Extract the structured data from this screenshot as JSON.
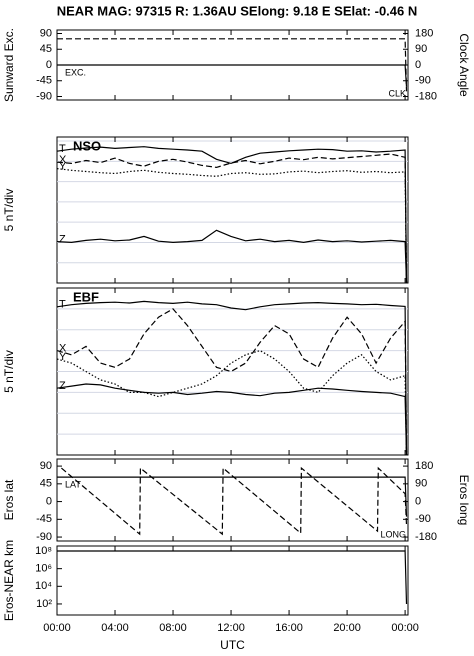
{
  "header": {
    "title": "NEAR MAG: 97315  R: 1.36AU  SElong:   9.18 E  SElat:  -0.46 N"
  },
  "chart_data": [
    {
      "type": "line",
      "ylabel": "Sunward Exc.",
      "y2label": "Clock Angle",
      "x": [
        0,
        24,
        24.1
      ],
      "xlim": [
        0,
        24.2
      ],
      "ylim": [
        -100,
        100
      ],
      "yticks": [
        -90,
        -45,
        0,
        45,
        90
      ],
      "y2lim": [
        -200,
        200
      ],
      "y2ticks": [
        -180,
        -90,
        0,
        90,
        180
      ],
      "series": [
        {
          "name": "EXC.",
          "color": "#000000",
          "dash": "solid",
          "values": [
            0,
            0,
            -62
          ]
        },
        {
          "name": "CLK",
          "color": "#000000",
          "dash": "dashed",
          "axis": "y2",
          "values": [
            150,
            150,
            -150
          ]
        }
      ]
    },
    {
      "type": "line",
      "title": "NSO",
      "ylabel": "5 nT/div",
      "x": [
        0,
        1,
        2,
        3,
        4,
        5,
        6,
        7,
        8,
        9,
        10,
        11,
        12,
        13,
        14,
        15,
        16,
        17,
        18,
        19,
        20,
        21,
        22,
        23,
        24,
        24.1
      ],
      "xlim": [
        0,
        24.2
      ],
      "ylim": [
        0,
        36
      ],
      "grid_lines": [
        5,
        10,
        15,
        20,
        25,
        30,
        35
      ],
      "series": [
        {
          "name": "T",
          "color": "#000000",
          "dash": "solid",
          "values": [
            32.5,
            33,
            33.3,
            33.5,
            33.2,
            33.4,
            33.6,
            33.2,
            33,
            32.8,
            32.5,
            30.5,
            29.5,
            31,
            32,
            32.3,
            32.6,
            32.8,
            33,
            32.9,
            32.5,
            32.6,
            32.3,
            32.5,
            32.8,
            0
          ]
        },
        {
          "name": "X",
          "color": "#000000",
          "dash": "dashed",
          "values": [
            29.8,
            29.5,
            30.2,
            29.7,
            30.8,
            29.5,
            28.8,
            30,
            30.5,
            29.8,
            29,
            28.5,
            29.6,
            30.2,
            29.4,
            30,
            30.8,
            30.4,
            31,
            30.6,
            30.9,
            31.2,
            31.5,
            31.8,
            31,
            0
          ]
        },
        {
          "name": "Y",
          "color": "#000000",
          "dash": "dotted",
          "values": [
            28.2,
            27.8,
            27.5,
            27.2,
            27,
            27.5,
            27.8,
            27.3,
            27,
            26.8,
            26.5,
            26.3,
            27,
            27.2,
            26.8,
            26.9,
            27.4,
            27.6,
            27.2,
            27.5,
            27.7,
            27.3,
            27.5,
            27.2,
            27.4,
            0
          ]
        },
        {
          "name": "Z",
          "color": "#000000",
          "dash": "solid",
          "values": [
            10.2,
            10,
            10.5,
            10.8,
            10.4,
            10.6,
            11.5,
            10.3,
            10,
            10.2,
            10.5,
            13,
            11.5,
            10.4,
            10.8,
            10.2,
            10.5,
            10,
            10.6,
            10.2,
            10.4,
            10.1,
            10.3,
            10.5,
            10.2,
            0
          ]
        }
      ]
    },
    {
      "type": "line",
      "title": "EBF",
      "ylabel": "5 nT/div",
      "x": [
        0,
        1,
        2,
        3,
        4,
        5,
        6,
        7,
        8,
        9,
        10,
        11,
        12,
        13,
        14,
        15,
        16,
        17,
        18,
        19,
        20,
        21,
        22,
        23,
        24,
        24.1
      ],
      "xlim": [
        0,
        24.2
      ],
      "ylim": [
        0,
        40
      ],
      "grid_lines": [
        5,
        10,
        15,
        20,
        25,
        30,
        35
      ],
      "series": [
        {
          "name": "T",
          "color": "#000000",
          "dash": "solid",
          "values": [
            35.5,
            36,
            36.3,
            36.5,
            36.6,
            36.4,
            36.8,
            36.5,
            36.3,
            36.6,
            36.2,
            36,
            35.2,
            34.8,
            35.5,
            36,
            36.2,
            36.4,
            36.5,
            36.3,
            36.2,
            36,
            36.1,
            35.8,
            35.6,
            0
          ]
        },
        {
          "name": "X",
          "color": "#000000",
          "dash": "dashed",
          "values": [
            25,
            24,
            26,
            22,
            21,
            23,
            29,
            33,
            35,
            31,
            26,
            21,
            20,
            22,
            27,
            31,
            29,
            23,
            21,
            28,
            33,
            29,
            22,
            28,
            32,
            0
          ]
        },
        {
          "name": "Y",
          "color": "#000000",
          "dash": "dotted",
          "values": [
            23,
            22,
            20,
            18,
            17,
            15,
            15,
            14,
            15,
            16,
            17,
            19,
            22,
            24,
            25,
            23,
            20,
            16,
            15,
            19,
            22,
            24,
            20,
            18,
            19,
            0
          ]
        },
        {
          "name": "Z",
          "color": "#000000",
          "dash": "solid",
          "values": [
            16,
            16.5,
            17,
            16.8,
            16,
            15.5,
            15,
            14.8,
            15,
            14.5,
            14.8,
            15.2,
            15,
            14.5,
            14.2,
            14.8,
            15,
            15.5,
            16,
            15.8,
            15.5,
            15.2,
            15,
            14.8,
            14,
            0
          ]
        }
      ]
    },
    {
      "type": "line",
      "ylabel": "Eros lat",
      "y2label": "Eros long",
      "xlim": [
        0,
        24.2
      ],
      "ylim": [
        -100,
        108
      ],
      "yticks": [
        -90,
        -45,
        0,
        45,
        90
      ],
      "y2lim": [
        -200,
        216
      ],
      "y2ticks": [
        -180,
        -90,
        0,
        90,
        180
      ],
      "series": [
        {
          "name": "LAT",
          "color": "#000000",
          "dash": "solid",
          "x": [
            0,
            24,
            24.1
          ],
          "values": [
            62,
            62,
            -38
          ]
        },
        {
          "name": "LONG",
          "color": "#000000",
          "dash": "dashed",
          "axis": "y2",
          "x": [
            0.3,
            5.7,
            5.75,
            11.4,
            11.45,
            16.8,
            16.85,
            22.1,
            22.15,
            24,
            24.1
          ],
          "values": [
            170,
            -165,
            170,
            -165,
            170,
            -160,
            170,
            -150,
            170,
            40,
            -120
          ]
        }
      ]
    },
    {
      "type": "line",
      "ylabel": "Eros-NEAR km",
      "log_scale": true,
      "xlabel": "UTC",
      "x": [
        0,
        24,
        24.1
      ],
      "xlim": [
        0,
        24.2
      ],
      "ylim": [
        5.6,
        370000000
      ],
      "yticks": [
        {
          "value": 100,
          "label": "10²"
        },
        {
          "value": 10000,
          "label": "10⁴"
        },
        {
          "value": 1000000,
          "label": "10⁶"
        },
        {
          "value": 100000000,
          "label": "10⁸"
        }
      ],
      "xticks": [
        {
          "value": 0,
          "label": "00:00"
        },
        {
          "value": 4,
          "label": "04:00"
        },
        {
          "value": 8,
          "label": "08:00"
        },
        {
          "value": 12,
          "label": "12:00"
        },
        {
          "value": 16,
          "label": "16:00"
        },
        {
          "value": 20,
          "label": "20:00"
        },
        {
          "value": 24,
          "label": "00:00"
        }
      ],
      "series": [
        {
          "name": "",
          "color": "#000000",
          "dash": "solid",
          "values": [
            100000000,
            100000000,
            100
          ]
        }
      ]
    }
  ]
}
